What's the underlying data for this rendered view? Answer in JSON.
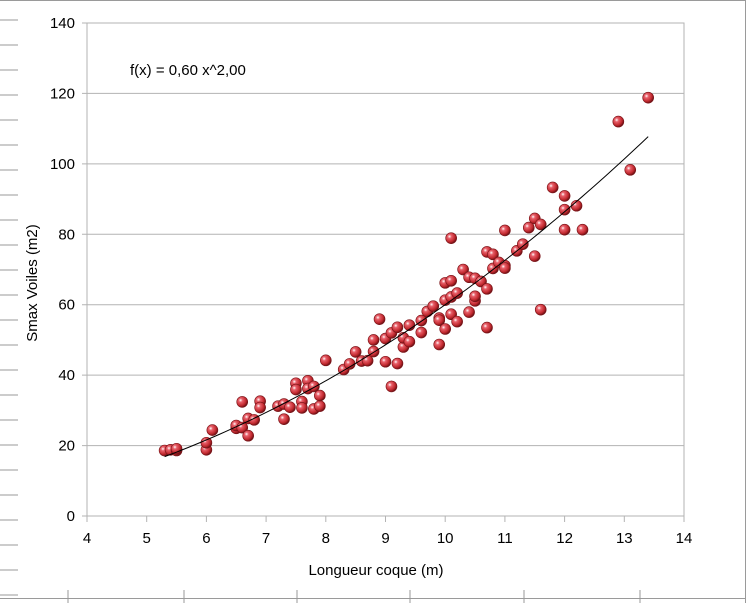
{
  "chart_data": {
    "type": "scatter",
    "title": "",
    "xlabel": "Longueur coque (m)",
    "ylabel": "Smax Voiles (m2)",
    "xlim": [
      4,
      14
    ],
    "ylim": [
      0,
      140
    ],
    "xticks": [
      "4",
      "5",
      "6",
      "7",
      "8",
      "9",
      "10",
      "11",
      "12",
      "13",
      "14"
    ],
    "yticks": [
      "0",
      "20",
      "40",
      "60",
      "80",
      "100",
      "120",
      "140"
    ],
    "grid": "horizontal",
    "equation_label": "f(x) = 0,60 x^2,00",
    "trendline": {
      "type": "power",
      "coef": 0.6,
      "exponent": 2.0,
      "x_range": [
        5.3,
        13.4
      ]
    },
    "marker_color": "#c0272d",
    "points": [
      [
        5.3,
        18.6
      ],
      [
        5.4,
        18.8
      ],
      [
        5.5,
        18.6
      ],
      [
        5.5,
        19.1
      ],
      [
        6.0,
        18.8
      ],
      [
        6.0,
        20.8
      ],
      [
        6.1,
        24.4
      ],
      [
        6.5,
        24.9
      ],
      [
        6.5,
        25.7
      ],
      [
        6.6,
        25.1
      ],
      [
        6.6,
        32.4
      ],
      [
        6.7,
        22.8
      ],
      [
        6.7,
        27.7
      ],
      [
        6.8,
        27.3
      ],
      [
        6.9,
        32.6
      ],
      [
        6.9,
        30.8
      ],
      [
        7.2,
        31.2
      ],
      [
        7.3,
        31.8
      ],
      [
        7.3,
        27.5
      ],
      [
        7.4,
        30.9
      ],
      [
        7.5,
        37.7
      ],
      [
        7.5,
        35.9
      ],
      [
        7.6,
        32.5
      ],
      [
        7.6,
        30.7
      ],
      [
        7.7,
        38.4
      ],
      [
        7.7,
        36.2
      ],
      [
        7.8,
        30.4
      ],
      [
        7.8,
        36.8
      ],
      [
        7.9,
        31.2
      ],
      [
        7.9,
        34.2
      ],
      [
        8.0,
        44.2
      ],
      [
        8.3,
        41.6
      ],
      [
        8.4,
        43.2
      ],
      [
        8.5,
        46.6
      ],
      [
        8.6,
        44.0
      ],
      [
        8.7,
        44.1
      ],
      [
        8.8,
        46.7
      ],
      [
        8.8,
        50.0
      ],
      [
        8.9,
        55.9
      ],
      [
        9.0,
        50.4
      ],
      [
        9.0,
        43.8
      ],
      [
        9.1,
        36.8
      ],
      [
        9.1,
        52.0
      ],
      [
        9.2,
        53.6
      ],
      [
        9.2,
        43.3
      ],
      [
        9.3,
        48.0
      ],
      [
        9.3,
        50.6
      ],
      [
        9.4,
        54.2
      ],
      [
        9.4,
        49.5
      ],
      [
        9.6,
        52.1
      ],
      [
        9.6,
        55.5
      ],
      [
        9.7,
        58.1
      ],
      [
        9.8,
        59.6
      ],
      [
        9.9,
        56.2
      ],
      [
        9.9,
        55.6
      ],
      [
        9.9,
        48.7
      ],
      [
        10.0,
        53.1
      ],
      [
        10.0,
        61.3
      ],
      [
        10.0,
        66.2
      ],
      [
        10.1,
        62.2
      ],
      [
        10.1,
        66.8
      ],
      [
        10.1,
        57.3
      ],
      [
        10.1,
        78.9
      ],
      [
        10.2,
        63.3
      ],
      [
        10.2,
        55.2
      ],
      [
        10.3,
        70.0
      ],
      [
        10.4,
        67.8
      ],
      [
        10.4,
        57.9
      ],
      [
        10.5,
        61.1
      ],
      [
        10.5,
        62.4
      ],
      [
        10.5,
        67.5
      ],
      [
        10.6,
        66.6
      ],
      [
        10.7,
        64.5
      ],
      [
        10.7,
        75.0
      ],
      [
        10.7,
        53.5
      ],
      [
        10.8,
        74.3
      ],
      [
        10.8,
        70.3
      ],
      [
        10.9,
        72.0
      ],
      [
        11.0,
        71.1
      ],
      [
        11.0,
        70.4
      ],
      [
        11.0,
        81.1
      ],
      [
        11.2,
        75.3
      ],
      [
        11.3,
        77.2
      ],
      [
        11.4,
        81.9
      ],
      [
        11.5,
        84.5
      ],
      [
        11.5,
        73.8
      ],
      [
        11.6,
        58.6
      ],
      [
        11.6,
        82.8
      ],
      [
        11.8,
        93.3
      ],
      [
        12.0,
        90.9
      ],
      [
        12.0,
        87.0
      ],
      [
        12.0,
        81.3
      ],
      [
        12.2,
        88.1
      ],
      [
        12.3,
        81.3
      ],
      [
        12.9,
        112.0
      ],
      [
        13.1,
        98.3
      ],
      [
        13.4,
        118.8
      ]
    ]
  }
}
